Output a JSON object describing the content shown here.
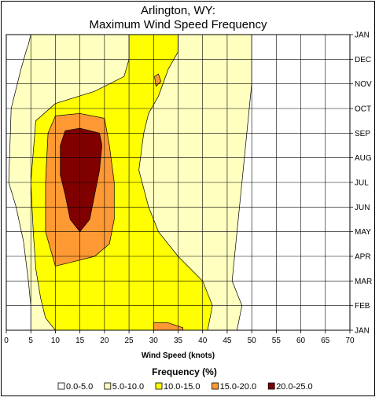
{
  "chart_data": {
    "type": "contour",
    "title_line1": "Arlington, WY:",
    "title_line2": "Maximum Wind Speed Frequency",
    "xlabel": "Wind Speed (knots)",
    "xlim": [
      0,
      70
    ],
    "x_ticks": [
      "0",
      "5",
      "10",
      "15",
      "20",
      "25",
      "30",
      "35",
      "40",
      "45",
      "50",
      "55",
      "60",
      "65",
      "70"
    ],
    "y_ticks": [
      "JAN",
      "FEB",
      "MAR",
      "APR",
      "MAY",
      "JUN",
      "JUL",
      "AUG",
      "SEP",
      "OCT",
      "NOV",
      "DEC",
      "JAN"
    ],
    "grid": true,
    "legend_title": "Frequency (%)",
    "legend_position": "bottom",
    "levels": [
      {
        "label": "0.0-5.0",
        "color": "#ffffff"
      },
      {
        "label": "5.0-10.0",
        "color": "#ffffc0"
      },
      {
        "label": "10.0-15.0",
        "color": "#ffff00"
      },
      {
        "label": "15.0-20.0",
        "color": "#ff9933"
      },
      {
        "label": "20.0-25.0",
        "color": "#800000"
      }
    ],
    "contours": {
      "5.0-10.0": {
        "upper": [
          [
            5,
            12
          ],
          [
            4.5,
            11.6
          ],
          [
            4,
            11.3
          ],
          [
            3,
            10.6
          ],
          [
            1,
            9
          ],
          [
            0.5,
            6
          ],
          [
            2,
            5
          ],
          [
            3.5,
            3.6
          ],
          [
            4.5,
            2
          ],
          [
            5,
            1
          ],
          [
            5,
            0
          ]
        ],
        "lower": [
          [
            5,
            12
          ],
          [
            30,
            12
          ],
          [
            50,
            12
          ],
          [
            50,
            10
          ],
          [
            49,
            8
          ],
          [
            48,
            6
          ],
          [
            47,
            4
          ],
          [
            46,
            2
          ],
          [
            48,
            1
          ],
          [
            47,
            0
          ],
          [
            5,
            0
          ]
        ]
      },
      "10.0-15.0": {
        "upper": [
          [
            25,
            12
          ],
          [
            25,
            11.6
          ],
          [
            25,
            11
          ],
          [
            24,
            10.3
          ],
          [
            18,
            9.7
          ],
          [
            10,
            9.2
          ],
          [
            6,
            8.5
          ],
          [
            5,
            6
          ],
          [
            5.5,
            4
          ],
          [
            6,
            2.5
          ],
          [
            7,
            1.3
          ],
          [
            8,
            0.5
          ],
          [
            10,
            0
          ]
        ],
        "lower": [
          [
            25,
            12
          ],
          [
            30,
            12
          ],
          [
            35,
            12
          ],
          [
            35,
            11.3
          ],
          [
            33,
            10.6
          ],
          [
            31,
            9.5
          ],
          [
            29,
            8.8
          ],
          [
            28,
            8
          ],
          [
            27,
            6.5
          ],
          [
            29,
            5
          ],
          [
            31,
            4
          ],
          [
            35,
            3
          ],
          [
            40,
            2
          ],
          [
            42,
            1
          ],
          [
            41,
            0
          ],
          [
            10,
            0
          ]
        ]
      },
      "15.0-20.0": {
        "path": [
          [
            10,
            8.7
          ],
          [
            15,
            8.8
          ],
          [
            20,
            8.6
          ],
          [
            21,
            7.5
          ],
          [
            22,
            6
          ],
          [
            22,
            4.5
          ],
          [
            21,
            3.5
          ],
          [
            18,
            3
          ],
          [
            14,
            2.8
          ],
          [
            10,
            2.6
          ],
          [
            8,
            4
          ],
          [
            8,
            6
          ],
          [
            8.5,
            8
          ]
        ]
      },
      "15.0-20.0_jan": {
        "path": [
          [
            30,
            0.3
          ],
          [
            33,
            0.3
          ],
          [
            36,
            0.1
          ],
          [
            36,
            0
          ],
          [
            30,
            0
          ]
        ]
      },
      "15.0-20.0_nov": {
        "path": [
          [
            30.2,
            10.3
          ],
          [
            31,
            10.4
          ],
          [
            31.5,
            10.1
          ],
          [
            30.5,
            9.9
          ]
        ]
      },
      "20.0-25.0": {
        "path": [
          [
            12,
            8.1
          ],
          [
            15,
            8.2
          ],
          [
            19,
            8
          ],
          [
            19.5,
            7.5
          ],
          [
            19,
            6.5
          ],
          [
            18,
            5.5
          ],
          [
            17,
            4.5
          ],
          [
            15,
            4
          ],
          [
            13,
            4.5
          ],
          [
            12,
            5.5
          ],
          [
            11,
            6.3
          ],
          [
            11,
            7.5
          ]
        ]
      }
    }
  }
}
